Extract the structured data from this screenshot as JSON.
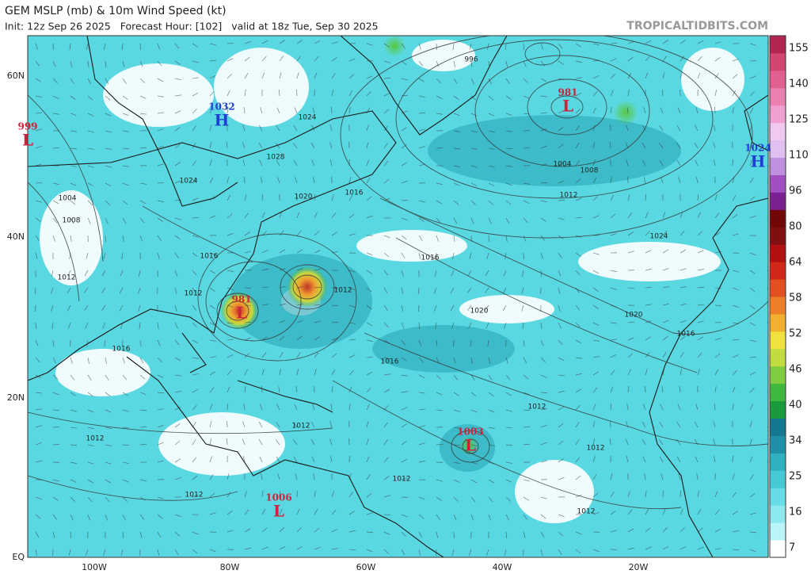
{
  "header": {
    "title": "GEM MSLP (mb) & 10m Wind Speed (kt)",
    "subtitle": "Init: 12z Sep 26 2025   Forecast Hour: [102]   valid at 18z Tue, Sep 30 2025",
    "site": "TROPICALTIDBITS.COM"
  },
  "latitude_labels": [
    "60N",
    "40N",
    "20N",
    "EQ"
  ],
  "longitude_labels": [
    "100W",
    "80W",
    "60W",
    "40W",
    "20W"
  ],
  "colorbar": {
    "labels": [
      155,
      140,
      125,
      110,
      96,
      80,
      64,
      58,
      52,
      46,
      40,
      34,
      25,
      16,
      7
    ]
  },
  "pressure_centers": [
    {
      "type": "L",
      "value": 999
    },
    {
      "type": "H",
      "value": 1032
    },
    {
      "type": "L",
      "value": 981
    },
    {
      "type": "L",
      "value": 981
    },
    {
      "type": "H",
      "value": 1024
    },
    {
      "type": "L",
      "value": 1003
    },
    {
      "type": "L",
      "value": 1006
    }
  ],
  "isobar_labels": [
    "1024",
    "1028",
    "1024",
    "1020",
    "1016",
    "1016",
    "1012",
    "1012",
    "1008",
    "1004",
    "1012",
    "1016",
    "1016",
    "1020",
    "1020",
    "1016",
    "1012",
    "1012",
    "1012",
    "1012",
    "1012",
    "1008",
    "1004",
    "1012",
    "1024",
    "996",
    "1016",
    "1012",
    "1012"
  ]
}
